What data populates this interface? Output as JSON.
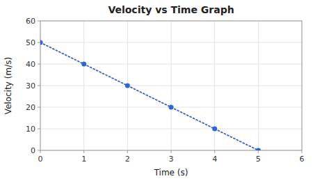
{
  "chart_data": {
    "type": "line",
    "title": "Velocity vs Time Graph",
    "xlabel": "Time (s)",
    "ylabel": "Velocity (m/s)",
    "x": [
      0,
      1,
      2,
      3,
      4,
      5
    ],
    "values": [
      50,
      40,
      30,
      20,
      10,
      0
    ],
    "color": "#3366cc",
    "marker": "circle",
    "line_style": "dotted",
    "xlim": [
      0,
      6
    ],
    "ylim": [
      0,
      60
    ],
    "xticks": [
      0,
      1,
      2,
      3,
      4,
      5,
      6
    ],
    "yticks": [
      0,
      10,
      20,
      30,
      40,
      50,
      60
    ],
    "grid": true
  }
}
